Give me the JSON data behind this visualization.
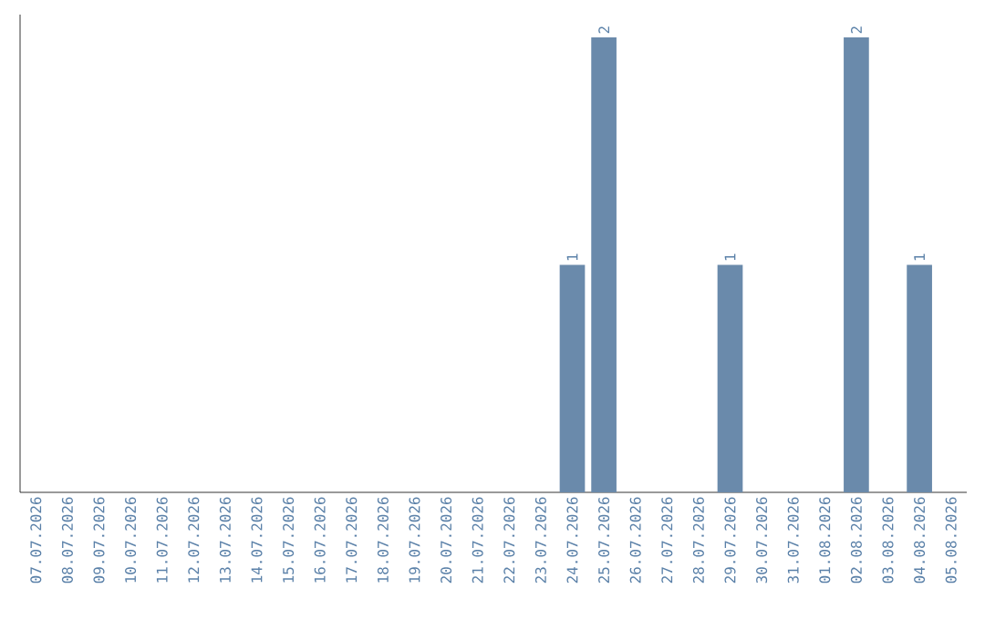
{
  "chart_data": {
    "type": "bar",
    "categories": [
      "07.07.2026",
      "08.07.2026",
      "09.07.2026",
      "10.07.2026",
      "11.07.2026",
      "12.07.2026",
      "13.07.2026",
      "14.07.2026",
      "15.07.2026",
      "16.07.2026",
      "17.07.2026",
      "18.07.2026",
      "19.07.2026",
      "20.07.2026",
      "21.07.2026",
      "22.07.2026",
      "23.07.2026",
      "24.07.2026",
      "25.07.2026",
      "26.07.2026",
      "27.07.2026",
      "28.07.2026",
      "29.07.2026",
      "30.07.2026",
      "31.07.2026",
      "01.08.2026",
      "02.08.2026",
      "03.08.2026",
      "04.08.2026",
      "05.08.2026"
    ],
    "values": [
      null,
      null,
      null,
      null,
      null,
      null,
      null,
      null,
      null,
      null,
      null,
      null,
      null,
      null,
      null,
      null,
      null,
      1,
      2,
      null,
      null,
      null,
      1,
      null,
      null,
      null,
      2,
      null,
      1,
      null
    ],
    "data_labels": true,
    "color": "#6a8aab",
    "grid": false,
    "tick_labels": "x"
  }
}
